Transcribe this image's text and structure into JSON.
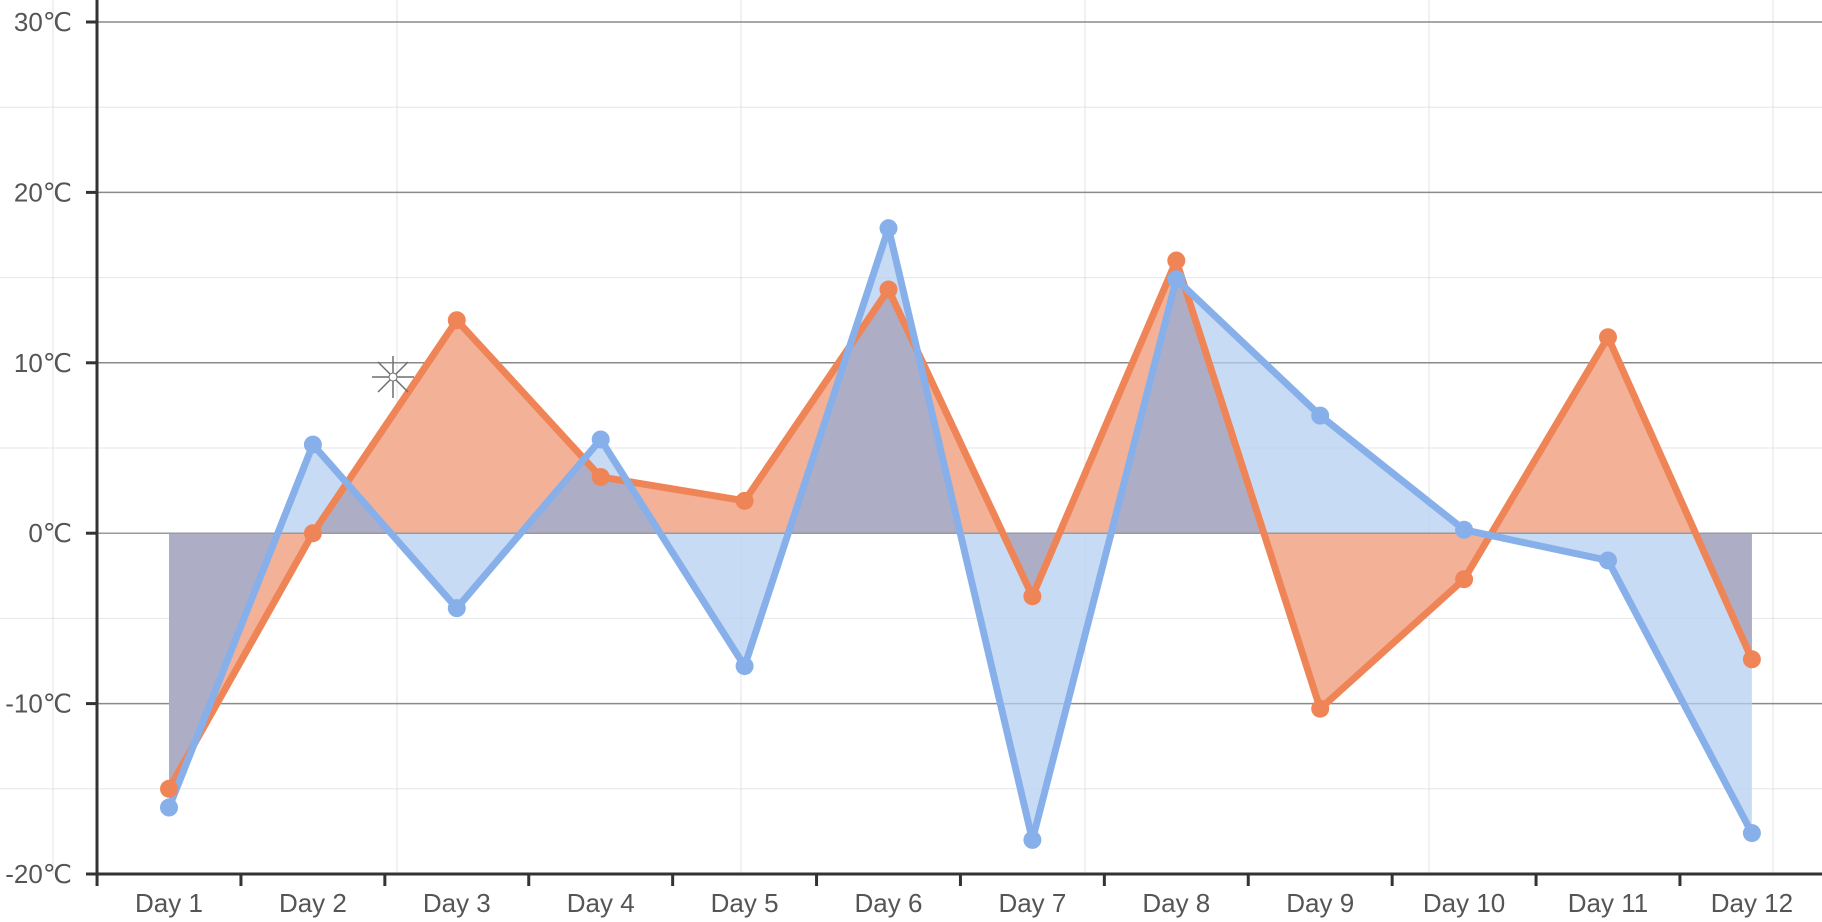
{
  "chart_data": {
    "type": "area",
    "categories": [
      "Day 1",
      "Day 2",
      "Day 3",
      "Day 4",
      "Day 5",
      "Day 6",
      "Day 7",
      "Day 8",
      "Day 9",
      "Day 10",
      "Day 11",
      "Day 12"
    ],
    "series": [
      {
        "color": "#ef8557",
        "fill": "#f3b298",
        "values": [
          -15,
          0,
          12.5,
          3.3,
          1.9,
          14.3,
          -3.7,
          16,
          -10.3,
          -2.7,
          11.5,
          -7.4
        ]
      },
      {
        "color": "#87b0ea",
        "fill": "#b5cff1",
        "values": [
          -16.1,
          5.2,
          -4.4,
          5.5,
          -7.8,
          17.9,
          -18,
          14.9,
          6.9,
          0.2,
          -1.6,
          -17.6
        ]
      }
    ],
    "overlap_fill": "#aeadc6",
    "ylim": [
      -20,
      30
    ],
    "yticks": [
      {
        "value": -20,
        "label": "-20℃"
      },
      {
        "value": -10,
        "label": "-10℃"
      },
      {
        "value": 0,
        "label": "0℃"
      },
      {
        "value": 10,
        "label": "10℃"
      },
      {
        "value": 20,
        "label": "20℃"
      },
      {
        "value": 30,
        "label": "30℃"
      }
    ],
    "grid": true,
    "legend": "none"
  }
}
